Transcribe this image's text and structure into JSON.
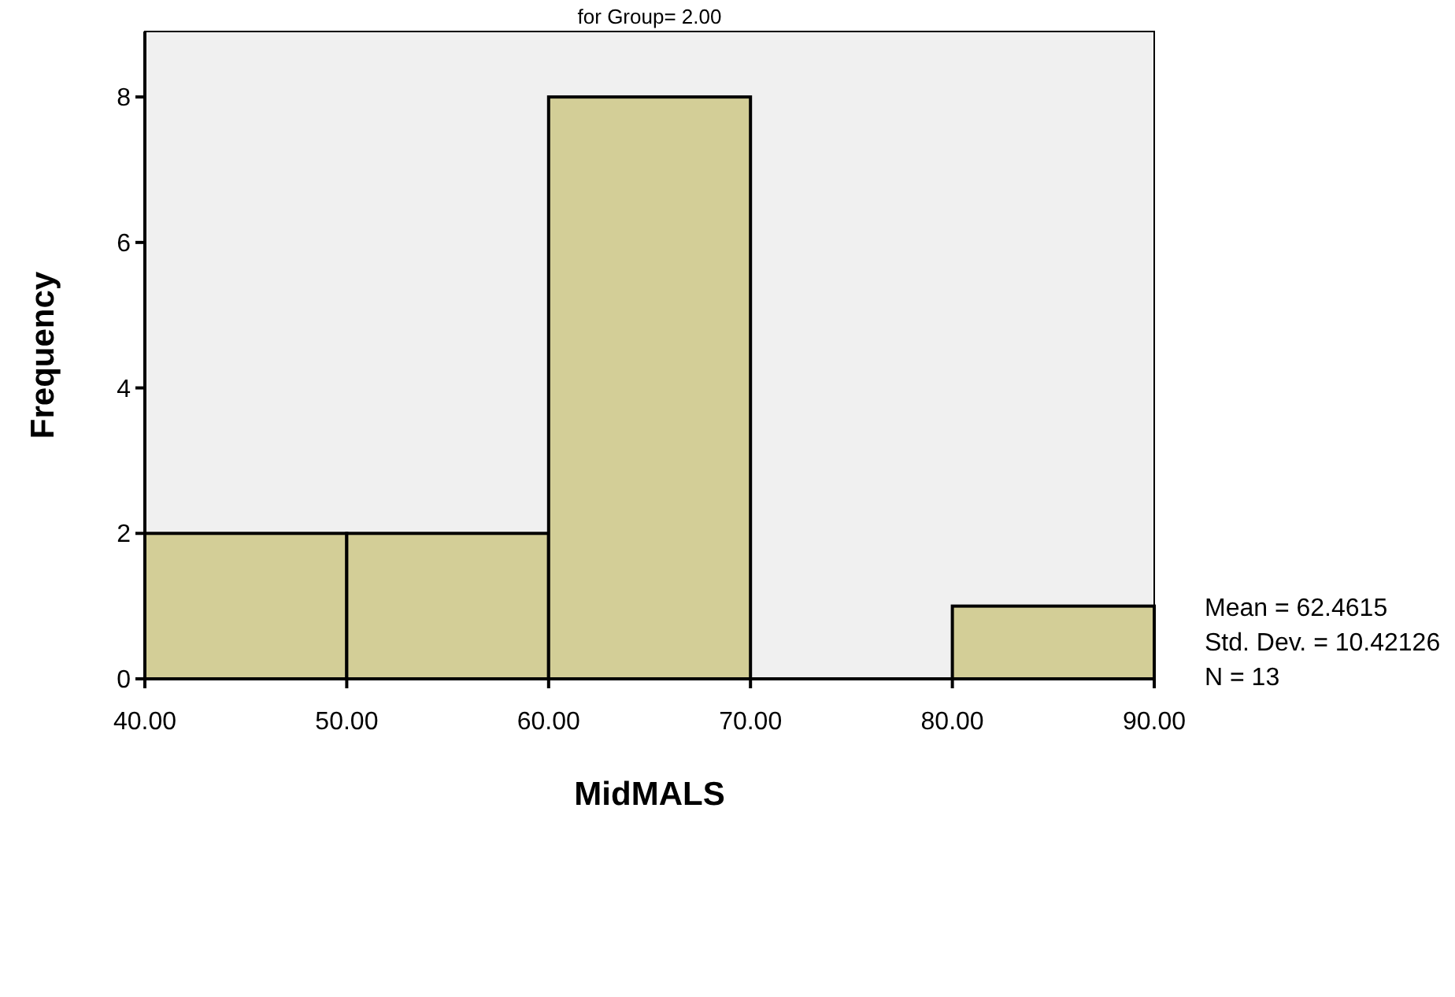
{
  "chart_data": {
    "type": "histogram",
    "title": "for Group= 2.00",
    "xlabel": "MidMALS",
    "ylabel": "Frequency",
    "bins": [
      40,
      50,
      60,
      70,
      80,
      90
    ],
    "values": [
      2,
      2,
      8,
      0,
      1
    ],
    "color": "#d3ce97",
    "xlim": [
      40,
      90
    ],
    "xticks": [
      {
        "value": 40,
        "label": "40.00"
      },
      {
        "value": 50,
        "label": "50.00"
      },
      {
        "value": 60,
        "label": "60.00"
      },
      {
        "value": 70,
        "label": "70.00"
      },
      {
        "value": 80,
        "label": "80.00"
      },
      {
        "value": 90,
        "label": "90.00"
      }
    ],
    "ylim": [
      0,
      8.9
    ],
    "yticks": [
      0,
      2,
      4,
      6,
      8
    ],
    "grid": false,
    "annotations": [
      "Mean = 62.4615",
      "Std. Dev. = 10.42126",
      "N = 13"
    ]
  }
}
